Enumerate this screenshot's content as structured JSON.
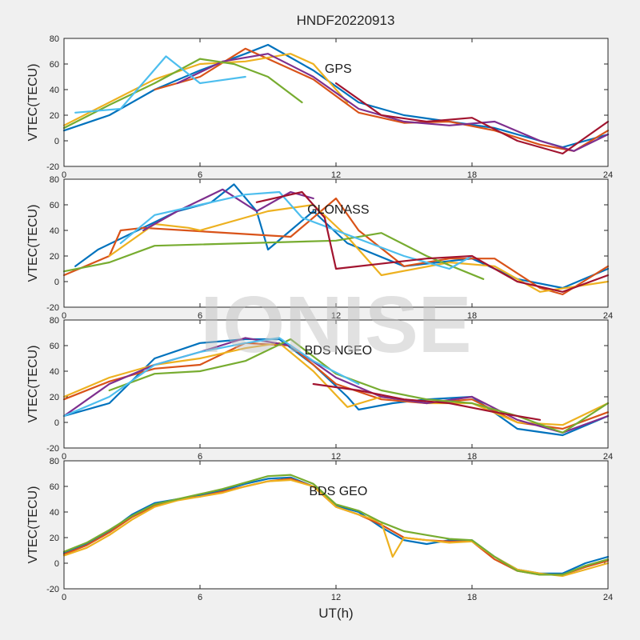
{
  "figure_title": "HNDF20220913",
  "watermark": "IONISE",
  "colors": [
    "#0072BD",
    "#D95319",
    "#EDB120",
    "#7E2F8E",
    "#77AC30",
    "#4DBEEE",
    "#A2142F"
  ],
  "chart_data": [
    {
      "type": "line",
      "annotation": "GPS",
      "xlabel": "",
      "ylabel": "VTEC(TECU)",
      "xlim": [
        0,
        24
      ],
      "ylim": [
        -20,
        80
      ],
      "xticks": [
        0,
        6,
        12,
        18,
        24
      ],
      "yticks": [
        -20,
        0,
        20,
        40,
        60,
        80
      ],
      "series": [
        {
          "x": [
            0,
            2,
            4,
            6,
            8,
            9,
            11,
            13,
            15,
            17,
            19,
            21,
            22,
            24
          ],
          "y": [
            8,
            20,
            40,
            55,
            68,
            75,
            55,
            30,
            20,
            15,
            10,
            0,
            -5,
            5
          ],
          "color_index": 0
        },
        {
          "x": [
            4,
            6,
            8,
            9.5,
            11,
            13,
            15,
            17,
            19,
            21,
            22.5,
            24
          ],
          "y": [
            40,
            50,
            72,
            60,
            48,
            22,
            14,
            15,
            8,
            -3,
            -8,
            8
          ],
          "color_index": 1
        },
        {
          "x": [
            0,
            2,
            4,
            6,
            8,
            10,
            11,
            12.5
          ],
          "y": [
            12,
            30,
            48,
            60,
            62,
            68,
            60,
            30
          ],
          "color_index": 2
        },
        {
          "x": [
            5,
            7,
            9,
            11,
            13,
            15,
            17,
            19,
            21,
            22.5,
            24
          ],
          "y": [
            45,
            62,
            68,
            50,
            25,
            15,
            12,
            15,
            0,
            -8,
            5
          ],
          "color_index": 3
        },
        {
          "x": [
            0,
            2,
            4,
            6,
            7.5,
            9,
            10.5
          ],
          "y": [
            10,
            28,
            45,
            64,
            60,
            50,
            30
          ],
          "color_index": 4
        },
        {
          "x": [
            0.5,
            2.5,
            4.5,
            6,
            8
          ],
          "y": [
            22,
            25,
            66,
            45,
            50
          ],
          "color_index": 5
        },
        {
          "x": [
            12,
            14,
            16,
            18,
            20,
            22,
            24
          ],
          "y": [
            45,
            20,
            15,
            18,
            0,
            -10,
            15
          ],
          "color_index": 6
        }
      ]
    },
    {
      "type": "line",
      "annotation": "GLONASS",
      "xlabel": "",
      "ylabel": "VTEC(TECU)",
      "xlim": [
        0,
        24
      ],
      "ylim": [
        -20,
        80
      ],
      "xticks": [
        0,
        6,
        12,
        18,
        24
      ],
      "yticks": [
        -20,
        0,
        20,
        40,
        60,
        80
      ],
      "series": [
        {
          "x": [
            0.5,
            1.5,
            5,
            6.5,
            7.5,
            8.5,
            9,
            11,
            12.5,
            15,
            18,
            20,
            22,
            24
          ],
          "y": [
            12,
            25,
            55,
            62,
            76,
            55,
            25,
            55,
            30,
            12,
            18,
            2,
            -5,
            10
          ],
          "color_index": 0
        },
        {
          "x": [
            0,
            2,
            2.5,
            3.5,
            10,
            12,
            13,
            15,
            17,
            19,
            21,
            22,
            24
          ],
          "y": [
            5,
            20,
            40,
            42,
            35,
            65,
            40,
            12,
            18,
            18,
            -5,
            -10,
            12
          ],
          "color_index": 1
        },
        {
          "x": [
            2,
            4,
            5.5,
            6,
            9,
            11,
            12.5,
            14,
            17,
            19,
            21,
            24
          ],
          "y": [
            20,
            45,
            42,
            40,
            55,
            60,
            35,
            5,
            15,
            12,
            -8,
            0
          ],
          "color_index": 2
        },
        {
          "x": [
            3.5,
            5,
            7,
            8.5,
            10,
            11
          ],
          "y": [
            40,
            55,
            72,
            55,
            70,
            65
          ],
          "color_index": 3
        },
        {
          "x": [
            0,
            2,
            4,
            12,
            14,
            16,
            18.5
          ],
          "y": [
            8,
            15,
            28,
            32,
            38,
            20,
            2
          ],
          "color_index": 4
        },
        {
          "x": [
            2.5,
            4,
            6,
            8,
            9.5,
            10.5,
            15,
            17,
            18
          ],
          "y": [
            30,
            52,
            60,
            68,
            70,
            50,
            20,
            10,
            20
          ],
          "color_index": 5
        },
        {
          "x": [
            8.5,
            10.5,
            11.5,
            12,
            16,
            18,
            20,
            22,
            24
          ],
          "y": [
            62,
            70,
            50,
            10,
            18,
            20,
            0,
            -8,
            5
          ],
          "color_index": 6
        }
      ]
    },
    {
      "type": "line",
      "annotation": "BDS NGEO",
      "xlabel": "",
      "ylabel": "VTEC(TECU)",
      "xlim": [
        0,
        24
      ],
      "ylim": [
        -20,
        80
      ],
      "xticks": [
        0,
        6,
        12,
        18,
        24
      ],
      "yticks": [
        -20,
        0,
        20,
        40,
        60,
        80
      ],
      "series": [
        {
          "x": [
            0,
            2,
            4,
            6,
            8,
            9.5,
            11,
            12.5,
            13,
            14.5,
            16,
            18,
            20,
            22,
            24
          ],
          "y": [
            5,
            15,
            50,
            62,
            65,
            65,
            45,
            20,
            10,
            15,
            18,
            20,
            -5,
            -10,
            5
          ],
          "color_index": 0
        },
        {
          "x": [
            0,
            2,
            4,
            6,
            8,
            10,
            12,
            14,
            16,
            18,
            20,
            22,
            24
          ],
          "y": [
            18,
            32,
            42,
            45,
            62,
            60,
            30,
            18,
            15,
            18,
            0,
            -5,
            8
          ],
          "color_index": 1
        },
        {
          "x": [
            0,
            2,
            4,
            6,
            8,
            9.5,
            11,
            12.5,
            14,
            16,
            18,
            20,
            22,
            24
          ],
          "y": [
            20,
            35,
            45,
            50,
            58,
            62,
            40,
            12,
            20,
            15,
            15,
            0,
            -2,
            15
          ],
          "color_index": 2
        },
        {
          "x": [
            0,
            2,
            4,
            6,
            8,
            10,
            12,
            14,
            16,
            18,
            20,
            22,
            24
          ],
          "y": [
            5,
            30,
            45,
            55,
            66,
            60,
            35,
            20,
            15,
            20,
            2,
            -8,
            5
          ],
          "color_index": 3
        },
        {
          "x": [
            2,
            4,
            6,
            8,
            10,
            12,
            14,
            16,
            18,
            20,
            22,
            24
          ],
          "y": [
            25,
            38,
            40,
            48,
            65,
            38,
            25,
            18,
            15,
            5,
            -8,
            15
          ],
          "color_index": 4
        },
        {
          "x": [
            0,
            2,
            4,
            6,
            8,
            9.5,
            11,
            13
          ],
          "y": [
            5,
            20,
            45,
            55,
            62,
            66,
            48,
            30
          ],
          "color_index": 5
        },
        {
          "x": [
            11,
            13,
            15,
            17,
            19,
            21
          ],
          "y": [
            30,
            25,
            18,
            15,
            8,
            2
          ],
          "color_index": 6
        }
      ]
    },
    {
      "type": "line",
      "annotation": "BDS GEO",
      "xlabel": "UT(h)",
      "ylabel": "VTEC(TECU)",
      "xlim": [
        0,
        24
      ],
      "ylim": [
        -20,
        80
      ],
      "xticks": [
        0,
        6,
        12,
        18,
        24
      ],
      "yticks": [
        -20,
        0,
        20,
        40,
        60,
        80
      ],
      "series": [
        {
          "x": [
            0,
            1,
            2,
            3,
            4,
            5,
            6,
            7,
            8,
            9,
            10,
            11,
            12,
            13,
            14,
            15,
            16,
            17,
            18,
            19,
            20,
            21,
            22,
            23,
            24
          ],
          "y": [
            8,
            15,
            25,
            38,
            47,
            50,
            53,
            57,
            62,
            66,
            67,
            60,
            45,
            40,
            28,
            18,
            15,
            18,
            18,
            5,
            -5,
            -8,
            -8,
            0,
            5
          ],
          "color_index": 0
        },
        {
          "x": [
            0,
            1,
            2,
            3,
            4,
            5,
            6,
            7,
            8,
            9,
            10,
            11,
            12,
            13,
            14,
            15,
            16,
            17,
            18,
            19,
            20,
            21,
            22,
            23,
            24
          ],
          "y": [
            7,
            14,
            24,
            36,
            45,
            50,
            52,
            56,
            60,
            64,
            66,
            60,
            44,
            38,
            30,
            20,
            18,
            17,
            17,
            3,
            -6,
            -9,
            -9,
            -3,
            2
          ],
          "color_index": 1
        },
        {
          "x": [
            0,
            1,
            2,
            3,
            4,
            5,
            6,
            7,
            8,
            9,
            10,
            11,
            12,
            13,
            14,
            14.5,
            15,
            16,
            17,
            18,
            19,
            20,
            21,
            22,
            23,
            24
          ],
          "y": [
            6,
            12,
            22,
            34,
            44,
            49,
            52,
            55,
            60,
            64,
            65,
            60,
            44,
            38,
            32,
            5,
            20,
            18,
            16,
            17,
            5,
            -5,
            -8,
            -10,
            -5,
            0
          ],
          "color_index": 2
        },
        {
          "x": [
            0,
            1,
            2,
            3,
            4,
            5,
            6,
            7,
            8,
            9,
            10,
            11,
            12,
            13,
            14,
            15,
            16,
            17,
            18,
            19,
            20,
            21,
            22,
            23,
            24
          ],
          "y": [
            9,
            16,
            26,
            37,
            46,
            50,
            54,
            58,
            63,
            68,
            69,
            62,
            46,
            41,
            32,
            25,
            22,
            19,
            18,
            5,
            -6,
            -9,
            -9,
            -2,
            3
          ],
          "color_index": 4
        }
      ]
    }
  ]
}
